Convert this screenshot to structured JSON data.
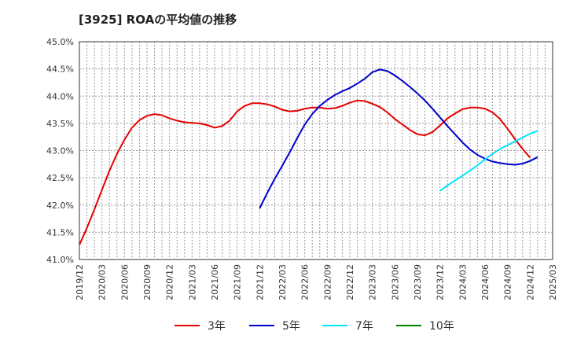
{
  "chart_data": {
    "type": "line",
    "title": "[3925]  ROAの平均値の推移",
    "xlabel": "",
    "ylabel": "",
    "ylim": [
      41.0,
      45.0
    ],
    "y_ticks": [
      "41.0%",
      "41.5%",
      "42.0%",
      "42.5%",
      "43.0%",
      "43.5%",
      "44.0%",
      "44.5%",
      "45.0%"
    ],
    "x_ticks": [
      "2019/12",
      "2020/03",
      "2020/06",
      "2020/09",
      "2020/12",
      "2021/03",
      "2021/06",
      "2021/09",
      "2021/12",
      "2022/03",
      "2022/06",
      "2022/09",
      "2022/12",
      "2023/03",
      "2023/06",
      "2023/09",
      "2023/12",
      "2024/03",
      "2024/06",
      "2024/09",
      "2024/12",
      "2025/03"
    ],
    "grid": true,
    "legend_position": "bottom",
    "series": [
      {
        "name": "3年",
        "color": "#e60000",
        "start_index": 0,
        "values": [
          41.27,
          41.58,
          41.92,
          42.28,
          42.63,
          42.94,
          43.2,
          43.42,
          43.56,
          43.64,
          43.67,
          43.65,
          43.59,
          43.55,
          43.52,
          43.51,
          43.5,
          43.47,
          43.42,
          43.45,
          43.55,
          43.72,
          43.82,
          43.87,
          43.87,
          43.85,
          43.81,
          43.75,
          43.72,
          43.73,
          43.77,
          43.79,
          43.79,
          43.77,
          43.78,
          43.82,
          43.88,
          43.92,
          43.91,
          43.86,
          43.8,
          43.7,
          43.58,
          43.48,
          43.38,
          43.3,
          43.28,
          43.34,
          43.46,
          43.59,
          43.68,
          43.76,
          43.79,
          43.79,
          43.77,
          43.7,
          43.58,
          43.4,
          43.21,
          43.03,
          42.87
        ]
      },
      {
        "name": "5年",
        "color": "#0000cc",
        "start_index": 24,
        "values": [
          41.94,
          42.22,
          42.48,
          42.72,
          42.97,
          43.23,
          43.48,
          43.67,
          43.82,
          43.93,
          44.02,
          44.09,
          44.15,
          44.23,
          44.32,
          44.44,
          44.49,
          44.46,
          44.38,
          44.28,
          44.17,
          44.05,
          43.92,
          43.77,
          43.61,
          43.45,
          43.3,
          43.15,
          43.02,
          42.92,
          42.85,
          42.8,
          42.77,
          42.75,
          42.74,
          42.76,
          42.81,
          42.88
        ]
      },
      {
        "name": "7年",
        "color": "#00e5ff",
        "start_index": 48,
        "values": [
          42.26,
          42.36,
          42.45,
          42.54,
          42.63,
          42.73,
          42.84,
          42.94,
          43.03,
          43.1,
          43.17,
          43.24,
          43.31,
          43.36
        ]
      },
      {
        "name": "10年",
        "color": "#008000",
        "start_index": 0,
        "values": []
      }
    ]
  }
}
